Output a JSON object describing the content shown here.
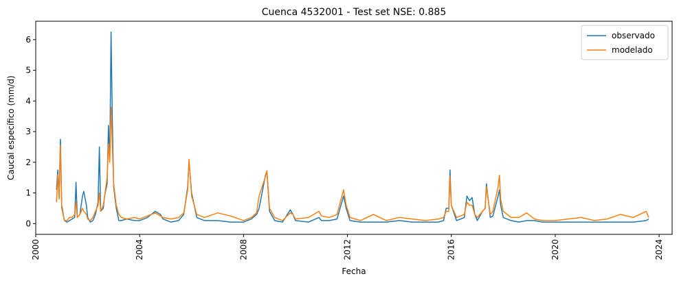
{
  "chart_data": {
    "type": "line",
    "title": "Cuenca 4532001 - Test set NSE: 0.885",
    "xlabel": "Fecha",
    "ylabel": "Caucal específico (mm/d)",
    "xlim": [
      2000.0,
      2024.5
    ],
    "ylim": [
      -0.35,
      6.6
    ],
    "x_ticks": [
      2000,
      2004,
      2008,
      2012,
      2016,
      2020,
      2024
    ],
    "x_tick_labels": [
      "2000",
      "2004",
      "2008",
      "2012",
      "2016",
      "2020",
      "2024"
    ],
    "y_ticks": [
      0,
      1,
      2,
      3,
      4,
      5,
      6
    ],
    "y_tick_labels": [
      "0",
      "1",
      "2",
      "3",
      "4",
      "5",
      "6"
    ],
    "grid": false,
    "legend_position": "top-right",
    "series": [
      {
        "name": "observado",
        "color": "#1f77b4",
        "x": [
          2000.8,
          2000.85,
          2000.9,
          2000.95,
          2001.0,
          2001.1,
          2001.2,
          2001.3,
          2001.4,
          2001.5,
          2001.55,
          2001.6,
          2001.7,
          2001.8,
          2001.85,
          2001.95,
          2002.0,
          2002.1,
          2002.2,
          2002.3,
          2002.4,
          2002.45,
          2002.5,
          2002.6,
          2002.65,
          2002.75,
          2002.8,
          2002.85,
          2002.9,
          2002.95,
          2003.0,
          2003.1,
          2003.2,
          2003.3,
          2003.5,
          2003.8,
          2004.0,
          2004.3,
          2004.6,
          2004.8,
          2004.9,
          2005.2,
          2005.5,
          2005.7,
          2005.85,
          2005.9,
          2006.0,
          2006.2,
          2006.5,
          2007.0,
          2007.5,
          2008.0,
          2008.3,
          2008.5,
          2008.6,
          2008.85,
          2008.9,
          2009.0,
          2009.2,
          2009.5,
          2009.8,
          2009.9,
          2010.0,
          2010.5,
          2010.9,
          2011.0,
          2011.3,
          2011.6,
          2011.85,
          2011.95,
          2012.1,
          2012.5,
          2013.0,
          2013.5,
          2014.0,
          2014.5,
          2015.0,
          2015.5,
          2015.7,
          2015.8,
          2015.9,
          2015.95,
          2016.0,
          2016.2,
          2016.5,
          2016.6,
          2016.7,
          2016.8,
          2016.9,
          2017.0,
          2017.2,
          2017.3,
          2017.35,
          2017.5,
          2017.6,
          2017.8,
          2017.85,
          2017.9,
          2018.0,
          2018.3,
          2018.6,
          2018.9,
          2019.2,
          2019.5,
          2020.0,
          2020.5,
          2021.0,
          2021.5,
          2022.0,
          2022.5,
          2023.0,
          2023.5,
          2023.6
        ],
        "y": [
          1.1,
          1.75,
          0.9,
          2.75,
          0.6,
          0.1,
          0.05,
          0.1,
          0.15,
          0.2,
          1.35,
          0.2,
          0.3,
          0.9,
          1.05,
          0.6,
          0.2,
          0.05,
          0.1,
          0.3,
          0.7,
          2.5,
          0.4,
          0.5,
          0.9,
          1.3,
          3.2,
          2.0,
          6.25,
          3.3,
          1.2,
          0.5,
          0.1,
          0.1,
          0.15,
          0.1,
          0.1,
          0.2,
          0.4,
          0.3,
          0.15,
          0.05,
          0.1,
          0.3,
          1.2,
          2.05,
          1.0,
          0.2,
          0.1,
          0.1,
          0.05,
          0.05,
          0.15,
          0.3,
          0.5,
          1.6,
          1.7,
          0.4,
          0.1,
          0.05,
          0.45,
          0.3,
          0.1,
          0.05,
          0.2,
          0.1,
          0.1,
          0.15,
          0.9,
          0.5,
          0.1,
          0.05,
          0.05,
          0.05,
          0.1,
          0.05,
          0.05,
          0.05,
          0.1,
          0.5,
          0.5,
          1.75,
          0.6,
          0.1,
          0.2,
          0.9,
          0.75,
          0.85,
          0.3,
          0.1,
          0.4,
          0.5,
          1.3,
          0.2,
          0.25,
          0.9,
          1.1,
          0.6,
          0.2,
          0.1,
          0.05,
          0.1,
          0.1,
          0.05,
          0.05,
          0.05,
          0.05,
          0.05,
          0.05,
          0.05,
          0.05,
          0.1,
          0.15
        ]
      },
      {
        "name": "modelado",
        "color": "#ff7f0e",
        "x": [
          2000.8,
          2000.85,
          2000.9,
          2000.95,
          2001.0,
          2001.1,
          2001.2,
          2001.3,
          2001.4,
          2001.5,
          2001.55,
          2001.6,
          2001.7,
          2001.8,
          2001.85,
          2001.95,
          2002.0,
          2002.1,
          2002.2,
          2002.3,
          2002.4,
          2002.45,
          2002.5,
          2002.6,
          2002.65,
          2002.75,
          2002.8,
          2002.85,
          2002.9,
          2002.95,
          2003.0,
          2003.1,
          2003.2,
          2003.3,
          2003.5,
          2003.8,
          2004.0,
          2004.3,
          2004.6,
          2004.8,
          2004.9,
          2005.2,
          2005.5,
          2005.7,
          2005.85,
          2005.9,
          2006.0,
          2006.2,
          2006.5,
          2007.0,
          2007.5,
          2008.0,
          2008.3,
          2008.5,
          2008.6,
          2008.85,
          2008.9,
          2009.0,
          2009.2,
          2009.5,
          2009.8,
          2009.9,
          2010.0,
          2010.5,
          2010.9,
          2011.0,
          2011.3,
          2011.6,
          2011.85,
          2011.95,
          2012.1,
          2012.5,
          2013.0,
          2013.5,
          2014.0,
          2014.5,
          2015.0,
          2015.5,
          2015.7,
          2015.8,
          2015.9,
          2015.95,
          2016.0,
          2016.2,
          2016.5,
          2016.6,
          2016.7,
          2016.8,
          2016.9,
          2017.0,
          2017.2,
          2017.3,
          2017.35,
          2017.5,
          2017.6,
          2017.8,
          2017.85,
          2017.9,
          2018.0,
          2018.3,
          2018.6,
          2018.9,
          2019.2,
          2019.5,
          2020.0,
          2020.5,
          2021.0,
          2021.5,
          2022.0,
          2022.5,
          2023.0,
          2023.5,
          2023.6
        ],
        "y": [
          0.7,
          1.6,
          0.8,
          2.55,
          0.5,
          0.1,
          0.1,
          0.2,
          0.2,
          0.3,
          0.7,
          0.2,
          0.3,
          0.5,
          0.4,
          0.3,
          0.15,
          0.1,
          0.2,
          0.4,
          0.6,
          1.0,
          0.4,
          0.6,
          0.9,
          1.5,
          2.6,
          2.0,
          3.8,
          2.5,
          1.3,
          0.6,
          0.3,
          0.2,
          0.15,
          0.2,
          0.15,
          0.25,
          0.35,
          0.25,
          0.2,
          0.15,
          0.2,
          0.35,
          1.1,
          2.1,
          0.9,
          0.3,
          0.2,
          0.35,
          0.25,
          0.1,
          0.2,
          0.35,
          0.9,
          1.55,
          1.72,
          0.5,
          0.2,
          0.1,
          0.35,
          0.3,
          0.15,
          0.2,
          0.4,
          0.25,
          0.2,
          0.3,
          1.1,
          0.6,
          0.2,
          0.1,
          0.3,
          0.1,
          0.2,
          0.15,
          0.1,
          0.15,
          0.2,
          0.4,
          0.4,
          1.55,
          0.6,
          0.2,
          0.3,
          0.7,
          0.6,
          0.6,
          0.3,
          0.2,
          0.4,
          0.5,
          1.2,
          0.3,
          0.4,
          1.2,
          1.58,
          0.8,
          0.4,
          0.2,
          0.2,
          0.35,
          0.15,
          0.1,
          0.1,
          0.15,
          0.2,
          0.1,
          0.15,
          0.3,
          0.2,
          0.4,
          0.2
        ]
      }
    ]
  }
}
